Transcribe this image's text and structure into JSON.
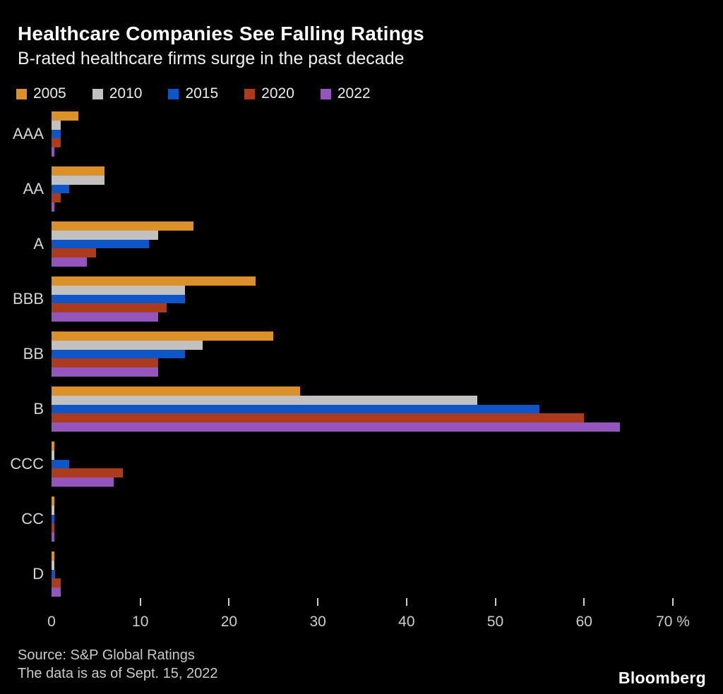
{
  "header": {
    "title": "Healthcare Companies See Falling Ratings",
    "subtitle": "B-rated healthcare firms surge in the past decade"
  },
  "legend": [
    {
      "label": "2005",
      "color": "#DC9128"
    },
    {
      "label": "2010",
      "color": "#C2C1BF"
    },
    {
      "label": "2015",
      "color": "#0E56C8"
    },
    {
      "label": "2020",
      "color": "#AC3A1C"
    },
    {
      "label": "2022",
      "color": "#9456BD"
    }
  ],
  "chart_data": {
    "type": "bar",
    "orientation": "horizontal",
    "title": "Healthcare Companies See Falling Ratings",
    "subtitle": "B-rated healthcare firms surge in the past decade",
    "categories": [
      "AAA",
      "AA",
      "A",
      "BBB",
      "BB",
      "B",
      "CCC",
      "CC",
      "D"
    ],
    "series": [
      {
        "name": "2005",
        "color": "#DC9128",
        "values": [
          3,
          6,
          16,
          23,
          25,
          28,
          0.3,
          0.3,
          0.3
        ]
      },
      {
        "name": "2010",
        "color": "#C2C1BF",
        "values": [
          1,
          6,
          12,
          15,
          17,
          48,
          0.3,
          0.3,
          0.3
        ]
      },
      {
        "name": "2015",
        "color": "#0E56C8",
        "values": [
          1,
          2,
          11,
          15,
          15,
          55,
          2,
          0.3,
          0.4
        ]
      },
      {
        "name": "2020",
        "color": "#AC3A1C",
        "values": [
          1,
          1,
          5,
          13,
          12,
          60,
          8,
          0.3,
          1
        ]
      },
      {
        "name": "2022",
        "color": "#9456BD",
        "values": [
          0.3,
          0.3,
          4,
          12,
          12,
          64,
          7,
          0.3,
          1
        ]
      }
    ],
    "xlim": [
      0,
      70
    ],
    "xticks": [
      0,
      10,
      20,
      30,
      40,
      50,
      60,
      70
    ],
    "xtick_suffix": "%",
    "unit": "percent",
    "grid": false,
    "legend_position": "top"
  },
  "footer": {
    "source_line1": "Source: S&P Global Ratings",
    "source_line2": "The data is as of Sept. 15, 2022",
    "brand": "Bloomberg"
  }
}
